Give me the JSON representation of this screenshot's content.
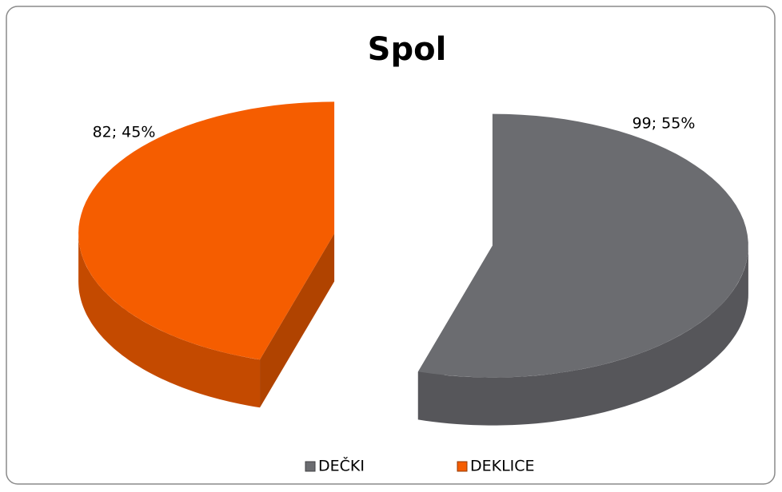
{
  "chart_data": {
    "type": "pie",
    "title": "Spol",
    "categories": [
      "DEČKI",
      "DEKLICE"
    ],
    "values": [
      99,
      82
    ],
    "value_labels": [
      "99; 55%",
      "82; 45%"
    ],
    "colors": [
      "#6b6c70",
      "#f55d00"
    ],
    "legend": "bottom"
  }
}
